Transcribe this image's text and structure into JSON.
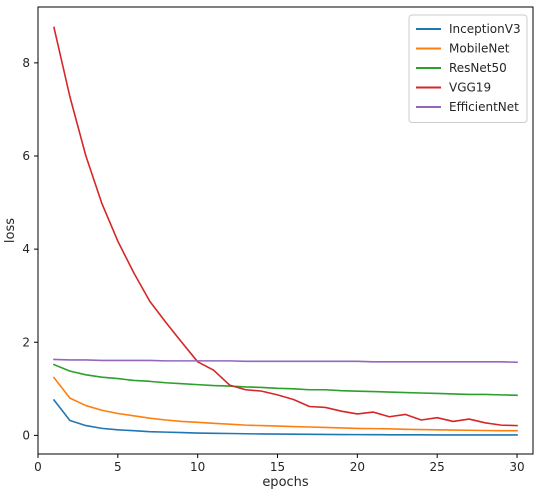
{
  "chart_data": {
    "type": "line",
    "title": "",
    "xlabel": "epochs",
    "ylabel": "loss",
    "xlim": [
      0,
      31
    ],
    "ylim": [
      -0.4,
      9.2
    ],
    "xticks": [
      0,
      5,
      10,
      15,
      20,
      25,
      30
    ],
    "yticks": [
      0,
      2,
      4,
      6,
      8
    ],
    "grid": false,
    "legend_position": "top-right",
    "x": [
      1,
      2,
      3,
      4,
      5,
      6,
      7,
      8,
      9,
      10,
      11,
      12,
      13,
      14,
      15,
      16,
      17,
      18,
      19,
      20,
      21,
      22,
      23,
      24,
      25,
      26,
      27,
      28,
      29,
      30
    ],
    "series": [
      {
        "name": "InceptionV3",
        "color": "#1f77b4",
        "values": [
          0.76,
          0.32,
          0.21,
          0.15,
          0.12,
          0.1,
          0.08,
          0.07,
          0.06,
          0.05,
          0.045,
          0.04,
          0.035,
          0.03,
          0.028,
          0.025,
          0.022,
          0.02,
          0.018,
          0.016,
          0.015,
          0.013,
          0.012,
          0.011,
          0.01,
          0.01,
          0.01,
          0.01,
          0.01,
          0.01
        ]
      },
      {
        "name": "MobileNet",
        "color": "#ff7f0e",
        "values": [
          1.24,
          0.8,
          0.64,
          0.54,
          0.47,
          0.42,
          0.37,
          0.33,
          0.3,
          0.28,
          0.26,
          0.24,
          0.22,
          0.21,
          0.2,
          0.19,
          0.18,
          0.17,
          0.16,
          0.15,
          0.145,
          0.14,
          0.13,
          0.125,
          0.12,
          0.115,
          0.11,
          0.105,
          0.1,
          0.1
        ]
      },
      {
        "name": "ResNet50",
        "color": "#2ca02c",
        "values": [
          1.52,
          1.38,
          1.3,
          1.25,
          1.22,
          1.18,
          1.16,
          1.13,
          1.11,
          1.09,
          1.07,
          1.06,
          1.04,
          1.03,
          1.01,
          1.0,
          0.98,
          0.98,
          0.96,
          0.95,
          0.94,
          0.93,
          0.92,
          0.91,
          0.9,
          0.89,
          0.88,
          0.88,
          0.87,
          0.86
        ]
      },
      {
        "name": "VGG19",
        "color": "#d62728",
        "values": [
          8.76,
          7.27,
          6.0,
          4.98,
          4.17,
          3.49,
          2.88,
          2.43,
          2.0,
          1.58,
          1.4,
          1.08,
          0.98,
          0.95,
          0.87,
          0.77,
          0.62,
          0.6,
          0.52,
          0.46,
          0.5,
          0.4,
          0.45,
          0.33,
          0.38,
          0.3,
          0.35,
          0.27,
          0.22,
          0.21
        ]
      },
      {
        "name": "EfficientNet",
        "color": "#9467bd",
        "values": [
          1.63,
          1.62,
          1.62,
          1.61,
          1.61,
          1.61,
          1.61,
          1.6,
          1.6,
          1.6,
          1.6,
          1.6,
          1.59,
          1.59,
          1.59,
          1.59,
          1.59,
          1.59,
          1.59,
          1.59,
          1.58,
          1.58,
          1.58,
          1.58,
          1.58,
          1.58,
          1.58,
          1.58,
          1.58,
          1.57
        ]
      }
    ]
  }
}
